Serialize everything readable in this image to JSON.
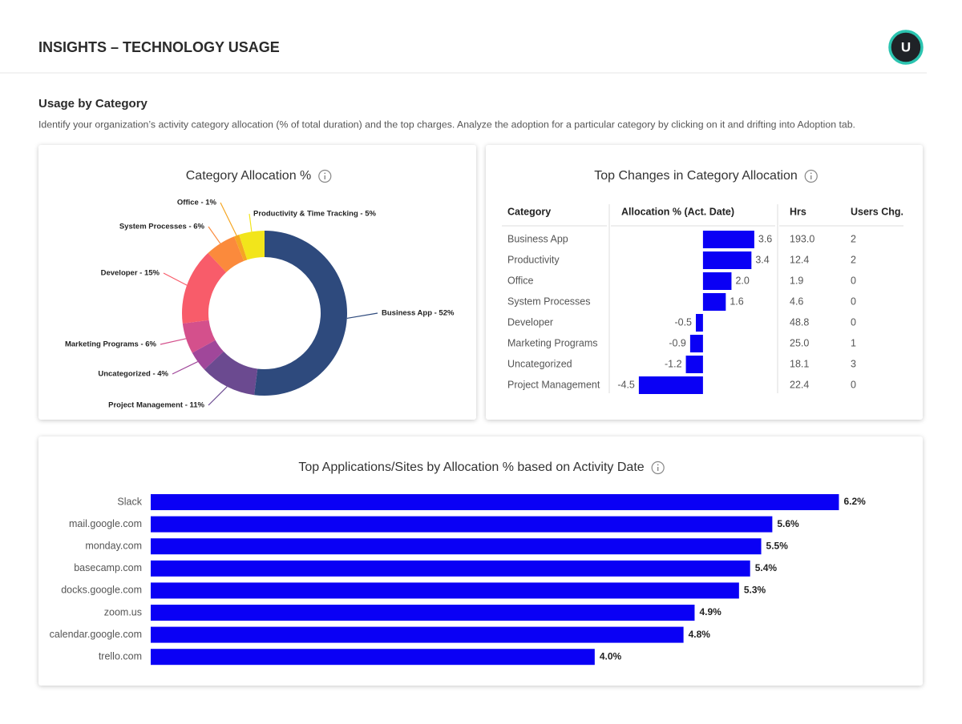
{
  "header": {
    "title": "INSIGHTS – TECHNOLOGY USAGE",
    "avatar": "U"
  },
  "section": {
    "title": "Usage by Category",
    "description": "Identify your organization’s activity category allocation (% of total duration) and the top charges. Analyze the adoption for a particular category by clicking on it and drifting into Adoption tab."
  },
  "chart_data": [
    {
      "type": "donut",
      "title": "Category Allocation %",
      "values": [
        52,
        11,
        4,
        6,
        15,
        6,
        1,
        5
      ],
      "value_labels": [
        "Business App - 52%",
        "Project Management - 11%",
        "Uncategorized - 4%",
        "Marketing Programs - 6%",
        "Developer - 15%",
        "System Processes - 6%",
        "Office - 1%",
        "Productivity & Time Tracking - 5%"
      ],
      "colors": [
        "#2e4a7d",
        "#6b4a90",
        "#a0479a",
        "#d4508c",
        "#f85c6a",
        "#fb8a3c",
        "#f5a623",
        "#f2e51b"
      ]
    },
    {
      "type": "table",
      "title": "Top Changes in Category Allocation",
      "columns": [
        "Category",
        "Allocation % (Act. Date)",
        "Hrs",
        "Users Chg."
      ],
      "categories": [
        "Business App",
        "Productivity",
        "Office",
        "System Processes",
        "Developer",
        "Marketing Programs",
        "Uncategorized",
        "Project Management"
      ],
      "values": [
        3.6,
        3.4,
        2.0,
        1.6,
        -0.5,
        -0.9,
        -1.2,
        -4.5
      ],
      "value_labels": [
        "3.6",
        "3.4",
        "2.0",
        "1.6",
        "-0.5",
        "-0.9",
        "-1.2",
        "-4.5"
      ],
      "hrs": [
        "193.0",
        "12.4",
        "1.9",
        "4.6",
        "48.8",
        "25.0",
        "18.1",
        "22.4"
      ],
      "users_change": [
        2,
        2,
        0,
        0,
        0,
        1,
        3,
        0
      ],
      "xlim": [
        -5,
        4
      ],
      "color": "#0a00f5"
    },
    {
      "type": "hbar",
      "title": "Top Applications/Sites by Allocation % based on Activity Date",
      "categories": [
        "Slack",
        "mail.google.com",
        "monday.com",
        "basecamp.com",
        "docks.google.com",
        "zoom.us",
        "calendar.google.com",
        "trello.com"
      ],
      "values": [
        6.2,
        5.6,
        5.5,
        5.4,
        5.3,
        4.9,
        4.8,
        4.0
      ],
      "value_labels": [
        "6.2%",
        "5.6%",
        "5.5%",
        "5.4%",
        "5.3%",
        "4.9%",
        "4.8%",
        "4.0%"
      ],
      "xlim": [
        0,
        6.5
      ],
      "color": "#0a00f5"
    }
  ]
}
